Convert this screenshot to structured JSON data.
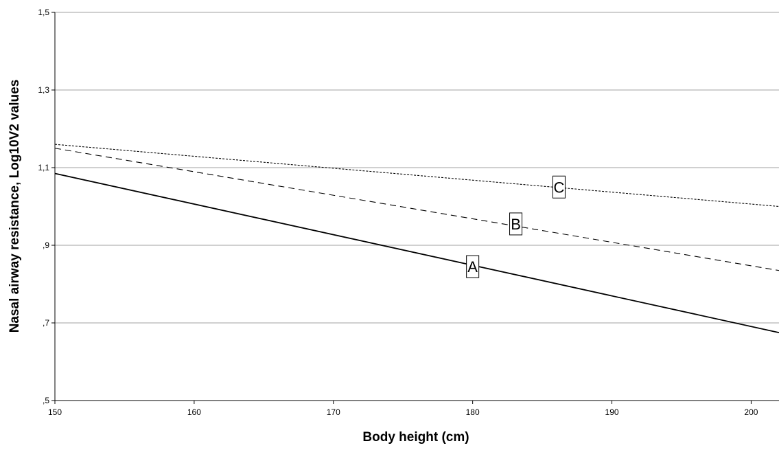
{
  "chart_data": {
    "type": "line",
    "title": "",
    "xlabel": "Body height (cm)",
    "ylabel": "Nasal airway resistance, Log10V2 values",
    "xlim": [
      150,
      202
    ],
    "ylim": [
      0.5,
      1.5
    ],
    "x_ticks": [
      150,
      160,
      170,
      180,
      190,
      200
    ],
    "x_tick_labels": [
      "150",
      "160",
      "170",
      "180",
      "190",
      "200"
    ],
    "y_ticks": [
      0.5,
      0.7,
      0.9,
      1.1,
      1.3,
      1.5
    ],
    "y_tick_labels": [
      ",5",
      ",7",
      ",9",
      "1,1",
      "1,3",
      "1,5"
    ],
    "grid": "horizontal",
    "series": [
      {
        "label": "A",
        "style": "solid",
        "color": "#000000",
        "x": [
          150,
          202
        ],
        "y": [
          1.085,
          0.675
        ],
        "label_x": 180,
        "label_y": 0.845
      },
      {
        "label": "B",
        "style": "dashed",
        "color": "#000000",
        "x": [
          150,
          202
        ],
        "y": [
          1.15,
          0.835
        ],
        "label_x": 183.1,
        "label_y": 0.955
      },
      {
        "label": "C",
        "style": "dotted",
        "color": "#000000",
        "x": [
          150,
          202
        ],
        "y": [
          1.16,
          1.0
        ],
        "label_x": 186.2,
        "label_y": 1.05
      }
    ]
  }
}
